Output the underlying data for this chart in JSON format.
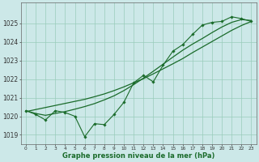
{
  "background_color": "#cce8e8",
  "grid_color": "#99ccbb",
  "line_color": "#1a6b2a",
  "xlabel": "Graphe pression niveau de la mer (hPa)",
  "x_ticks": [
    0,
    1,
    2,
    3,
    4,
    5,
    6,
    7,
    8,
    9,
    10,
    11,
    12,
    13,
    14,
    15,
    16,
    17,
    18,
    19,
    20,
    21,
    22,
    23
  ],
  "ylim": [
    1018.5,
    1026.1
  ],
  "yticks": [
    1019,
    1020,
    1021,
    1022,
    1023,
    1024,
    1025
  ],
  "series_noisy": [
    1020.3,
    1020.1,
    1019.8,
    1020.3,
    1020.2,
    1020.0,
    1018.9,
    1019.6,
    1019.55,
    1020.1,
    1020.75,
    1021.8,
    1022.2,
    1021.85,
    1022.75,
    1023.5,
    1023.85,
    1024.4,
    1024.9,
    1025.05,
    1025.1,
    1025.35,
    1025.25,
    1025.1
  ],
  "series_smooth": [
    1020.3,
    1020.15,
    1020.05,
    1020.15,
    1020.25,
    1020.38,
    1020.52,
    1020.68,
    1020.88,
    1021.1,
    1021.38,
    1021.7,
    1022.05,
    1022.42,
    1022.8,
    1023.18,
    1023.55,
    1023.88,
    1024.18,
    1024.5,
    1024.8,
    1025.05,
    1025.2,
    1025.15
  ],
  "series_linear": [
    1020.25,
    1020.36,
    1020.47,
    1020.58,
    1020.69,
    1020.8,
    1020.91,
    1021.05,
    1021.2,
    1021.38,
    1021.58,
    1021.8,
    1022.02,
    1022.28,
    1022.55,
    1022.82,
    1023.1,
    1023.42,
    1023.72,
    1024.02,
    1024.32,
    1024.62,
    1024.88,
    1025.1
  ]
}
